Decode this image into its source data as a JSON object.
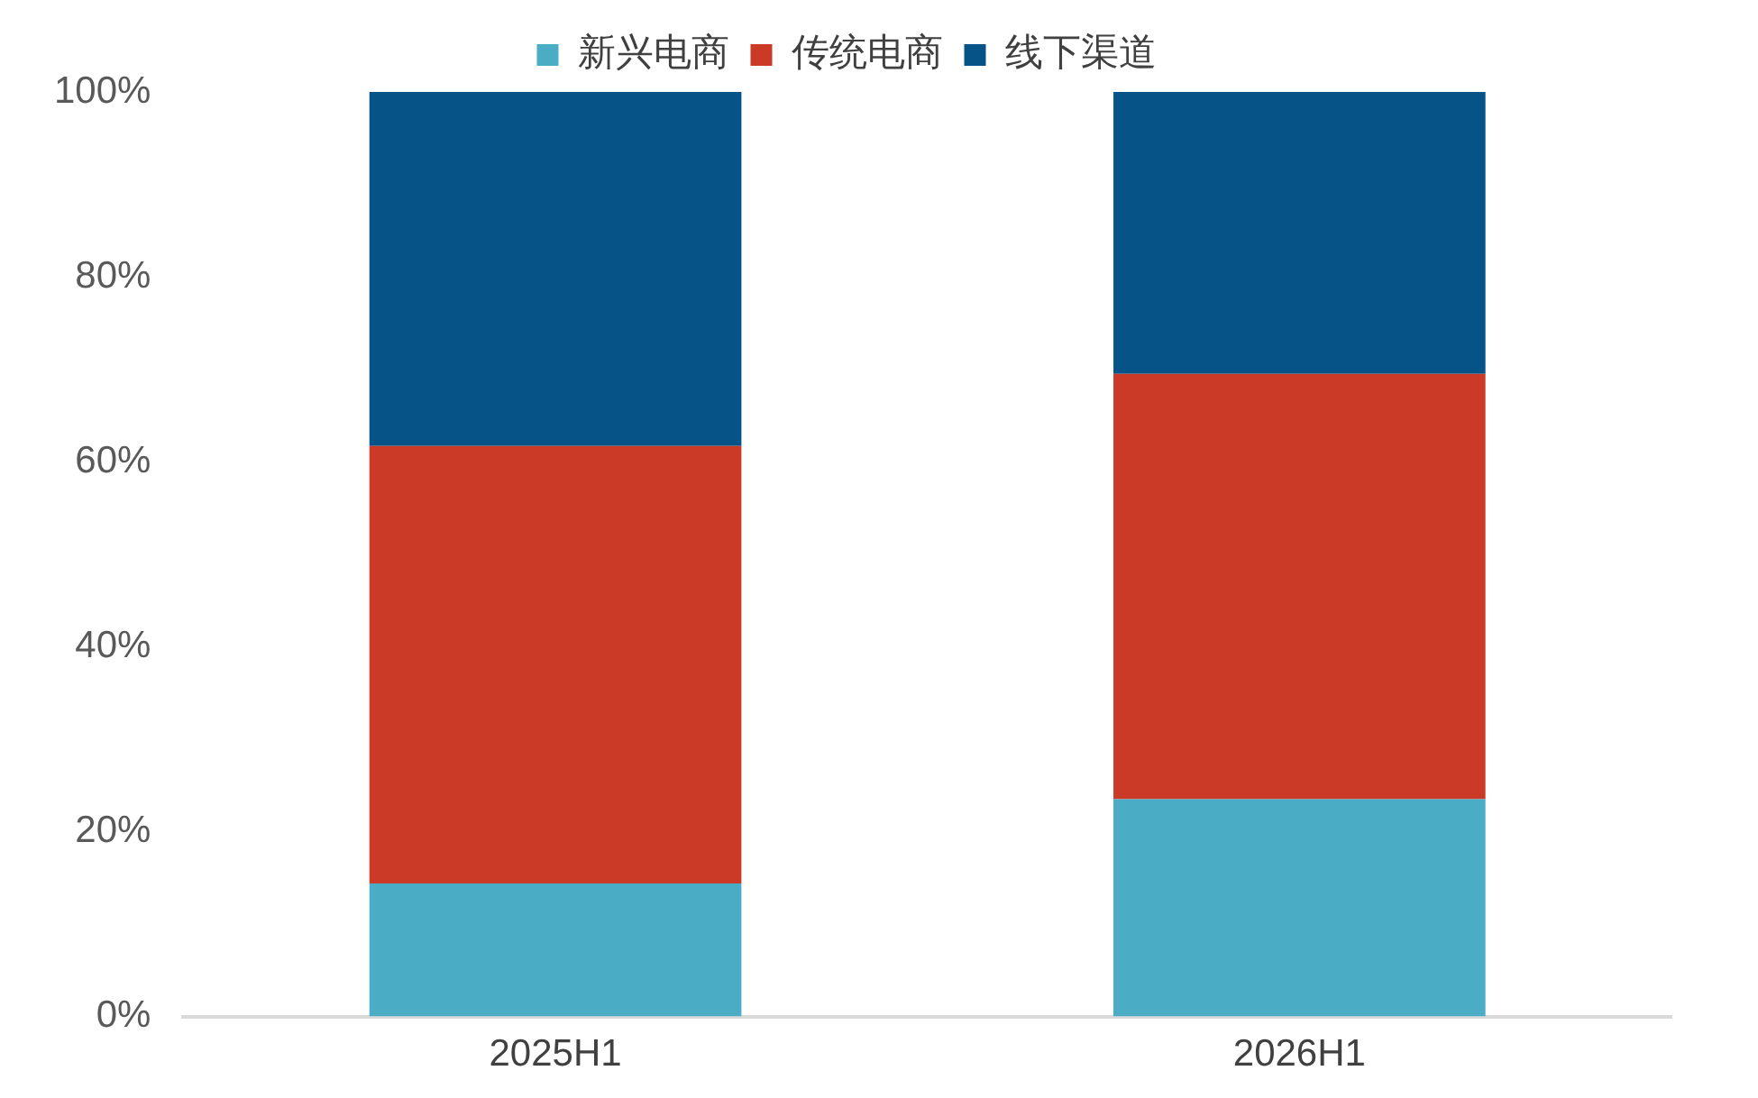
{
  "chart_data": {
    "type": "bar",
    "stacked": true,
    "categories": [
      "2025H1",
      "2026H1"
    ],
    "series": [
      {
        "name": "新兴电商",
        "color": "#4bacc6",
        "values": [
          14.4,
          23.5
        ]
      },
      {
        "name": "传统电商",
        "color": "#cb3a26",
        "values": [
          47.3,
          46.0
        ]
      },
      {
        "name": "线下渠道",
        "color": "#065487",
        "values": [
          38.3,
          30.5
        ]
      }
    ],
    "ylim": [
      0,
      100
    ],
    "yticks": [
      {
        "value": 0,
        "label": "0%"
      },
      {
        "value": 20,
        "label": "20%"
      },
      {
        "value": 40,
        "label": "40%"
      },
      {
        "value": 60,
        "label": "60%"
      },
      {
        "value": 80,
        "label": "80%"
      },
      {
        "value": 100,
        "label": "100%"
      }
    ],
    "grid": false,
    "legend": "top"
  }
}
